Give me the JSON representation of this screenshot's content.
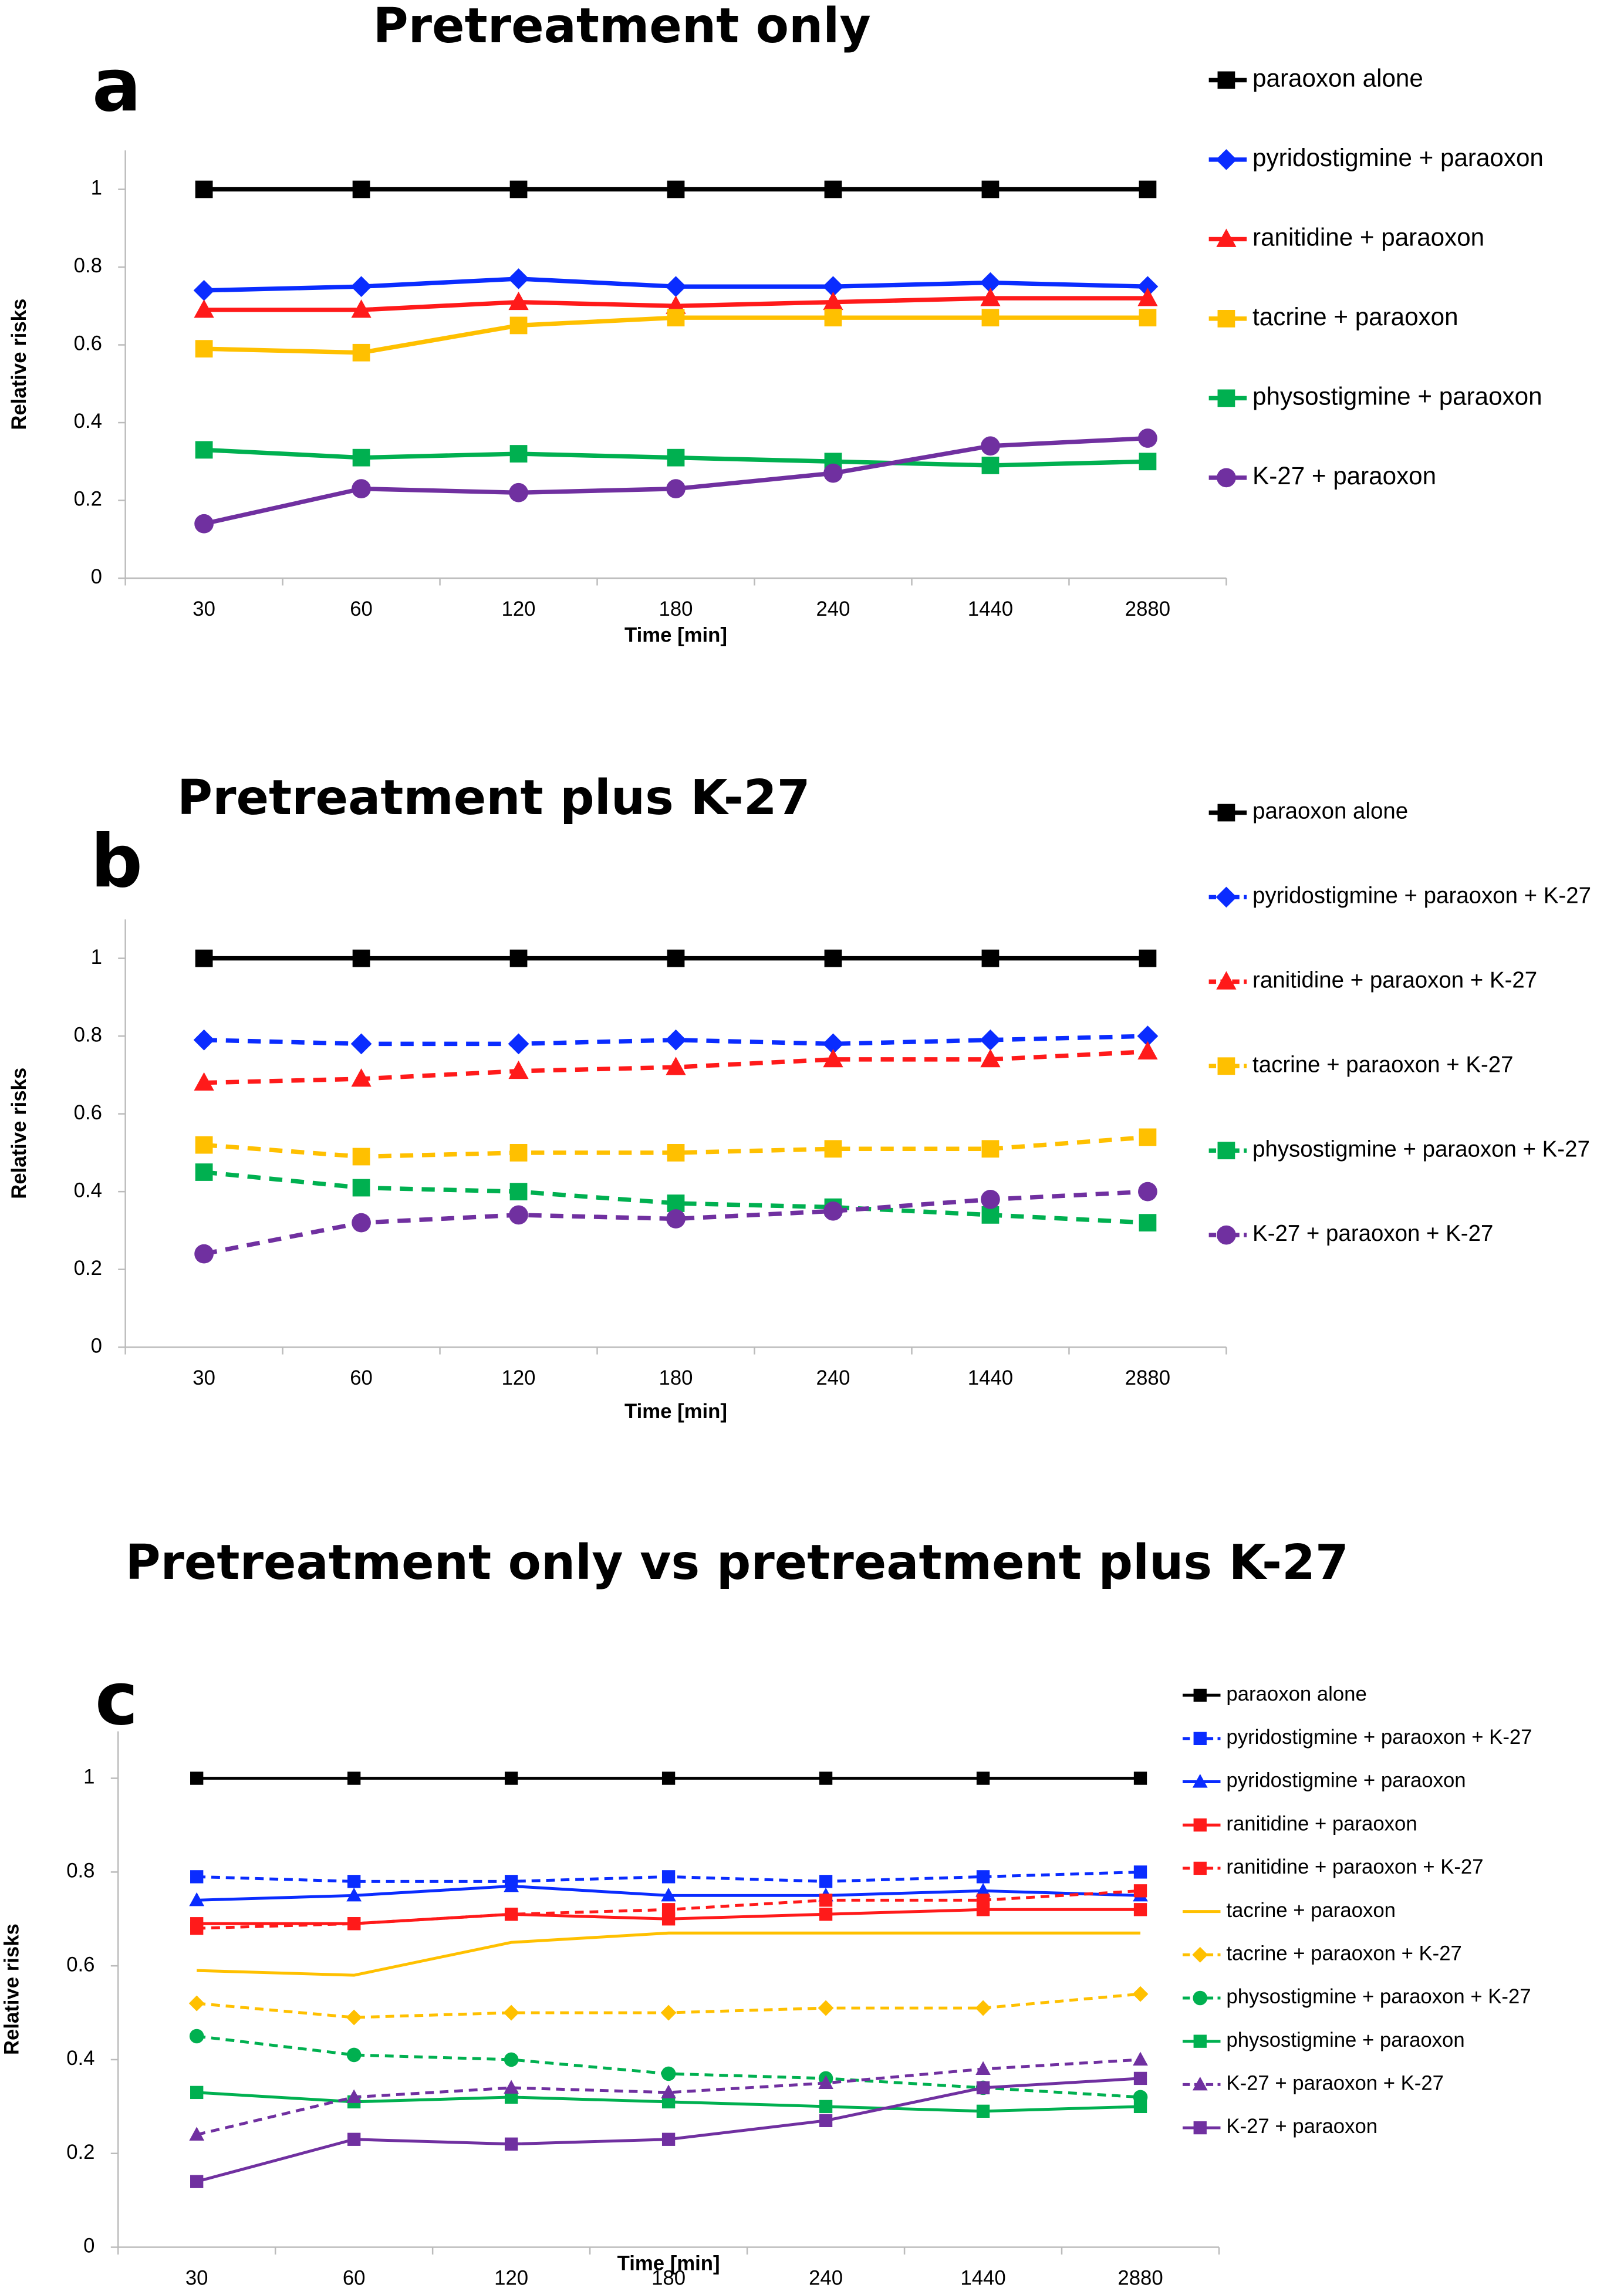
{
  "chart_data": [
    {
      "type": "line",
      "label": "a",
      "title": "Pretreatment only",
      "xlabel": "Time [min]",
      "ylabel": "Relative risks",
      "categories": [
        "30",
        "60",
        "120",
        "180",
        "240",
        "1440",
        "2880"
      ],
      "ylim": [
        0,
        1.1
      ],
      "yticks": [
        0,
        0.2,
        0.4,
        0.6,
        0.8,
        1
      ],
      "series": [
        {
          "name": "paraoxon alone",
          "color": "#000000",
          "dashed": false,
          "marker": "square",
          "values": [
            1,
            1,
            1,
            1,
            1,
            1,
            1
          ]
        },
        {
          "name": "pyridostigmine + paraoxon",
          "color": "#0a2cff",
          "dashed": false,
          "marker": "diamond",
          "values": [
            0.74,
            0.75,
            0.77,
            0.75,
            0.75,
            0.76,
            0.75
          ]
        },
        {
          "name": "ranitidine + paraoxon",
          "color": "#ff1a1a",
          "dashed": false,
          "marker": "triangle",
          "values": [
            0.69,
            0.69,
            0.71,
            0.7,
            0.71,
            0.72,
            0.72
          ]
        },
        {
          "name": "tacrine + paraoxon",
          "color": "#ffc000",
          "dashed": false,
          "marker": "square",
          "values": [
            0.59,
            0.58,
            0.65,
            0.67,
            0.67,
            0.67,
            0.67
          ]
        },
        {
          "name": "physostigmine + paraoxon",
          "color": "#00b050",
          "dashed": false,
          "marker": "square",
          "values": [
            0.33,
            0.31,
            0.32,
            0.31,
            0.3,
            0.29,
            0.3
          ]
        },
        {
          "name": "K-27 + paraoxon",
          "color": "#7030a0",
          "dashed": false,
          "marker": "circle",
          "values": [
            0.14,
            0.23,
            0.22,
            0.23,
            0.27,
            0.34,
            0.36
          ]
        }
      ]
    },
    {
      "type": "line",
      "label": "b",
      "title": "Pretreatment plus K-27",
      "xlabel": "Time [min]",
      "ylabel": "Relative risks",
      "categories": [
        "30",
        "60",
        "120",
        "180",
        "240",
        "1440",
        "2880"
      ],
      "ylim": [
        0,
        1.1
      ],
      "yticks": [
        0,
        0.2,
        0.4,
        0.6,
        0.8,
        1
      ],
      "series": [
        {
          "name": "paraoxon alone",
          "color": "#000000",
          "dashed": false,
          "marker": "square",
          "values": [
            1,
            1,
            1,
            1,
            1,
            1,
            1
          ]
        },
        {
          "name": "pyridostigmine + paraoxon + K-27",
          "color": "#0a2cff",
          "dashed": true,
          "marker": "diamond",
          "values": [
            0.79,
            0.78,
            0.78,
            0.79,
            0.78,
            0.79,
            0.8
          ]
        },
        {
          "name": "ranitidine + paraoxon + K-27",
          "color": "#ff1a1a",
          "dashed": true,
          "marker": "triangle",
          "values": [
            0.68,
            0.69,
            0.71,
            0.72,
            0.74,
            0.74,
            0.76
          ]
        },
        {
          "name": "tacrine + paraoxon + K-27",
          "color": "#ffc000",
          "dashed": true,
          "marker": "square",
          "values": [
            0.52,
            0.49,
            0.5,
            0.5,
            0.51,
            0.51,
            0.54
          ]
        },
        {
          "name": "physostigmine + paraoxon + K-27",
          "color": "#00b050",
          "dashed": true,
          "marker": "square",
          "values": [
            0.45,
            0.41,
            0.4,
            0.37,
            0.36,
            0.34,
            0.32
          ]
        },
        {
          "name": "K-27 + paraoxon + K-27",
          "color": "#7030a0",
          "dashed": true,
          "marker": "circle",
          "values": [
            0.24,
            0.32,
            0.34,
            0.33,
            0.35,
            0.38,
            0.4
          ]
        }
      ]
    },
    {
      "type": "line",
      "label": "c",
      "title": "Pretreatment only vs pretreatment plus K-27",
      "xlabel": "Time [min]",
      "ylabel": "Relative risks",
      "categories": [
        "30",
        "60",
        "120",
        "180",
        "240",
        "1440",
        "2880"
      ],
      "ylim": [
        0,
        1.1
      ],
      "yticks": [
        0,
        0.2,
        0.4,
        0.6,
        0.8,
        1
      ],
      "series": [
        {
          "name": "paraoxon alone",
          "color": "#000000",
          "dashed": false,
          "marker": "square",
          "values": [
            1,
            1,
            1,
            1,
            1,
            1,
            1
          ]
        },
        {
          "name": "pyridostigmine + paraoxon + K-27",
          "color": "#0a2cff",
          "dashed": true,
          "marker": "square",
          "values": [
            0.79,
            0.78,
            0.78,
            0.79,
            0.78,
            0.79,
            0.8
          ]
        },
        {
          "name": "pyridostigmine + paraoxon",
          "color": "#0a2cff",
          "dashed": false,
          "marker": "triangle",
          "values": [
            0.74,
            0.75,
            0.77,
            0.75,
            0.75,
            0.76,
            0.75
          ]
        },
        {
          "name": "ranitidine + paraoxon",
          "color": "#ff1a1a",
          "dashed": false,
          "marker": "square",
          "values": [
            0.69,
            0.69,
            0.71,
            0.7,
            0.71,
            0.72,
            0.72
          ]
        },
        {
          "name": "ranitidine + paraoxon + K-27",
          "color": "#ff1a1a",
          "dashed": true,
          "marker": "square",
          "values": [
            0.68,
            0.69,
            0.71,
            0.72,
            0.74,
            0.74,
            0.76
          ]
        },
        {
          "name": "tacrine + paraoxon",
          "color": "#ffc000",
          "dashed": false,
          "marker": "none",
          "values": [
            0.59,
            0.58,
            0.65,
            0.67,
            0.67,
            0.67,
            0.67
          ]
        },
        {
          "name": "tacrine + paraoxon + K-27",
          "color": "#ffc000",
          "dashed": true,
          "marker": "diamond",
          "values": [
            0.52,
            0.49,
            0.5,
            0.5,
            0.51,
            0.51,
            0.54
          ]
        },
        {
          "name": "physostigmine + paraoxon + K-27",
          "color": "#00b050",
          "dashed": true,
          "marker": "circle",
          "values": [
            0.45,
            0.41,
            0.4,
            0.37,
            0.36,
            0.34,
            0.32
          ]
        },
        {
          "name": "physostigmine + paraoxon",
          "color": "#00b050",
          "dashed": false,
          "marker": "square",
          "values": [
            0.33,
            0.31,
            0.32,
            0.31,
            0.3,
            0.29,
            0.3
          ]
        },
        {
          "name": "K-27 + paraoxon + K-27",
          "color": "#7030a0",
          "dashed": true,
          "marker": "triangle",
          "values": [
            0.24,
            0.32,
            0.34,
            0.33,
            0.35,
            0.38,
            0.4
          ]
        },
        {
          "name": "K-27 + paraoxon",
          "color": "#7030a0",
          "dashed": false,
          "marker": "square",
          "values": [
            0.14,
            0.23,
            0.22,
            0.23,
            0.27,
            0.34,
            0.36
          ]
        }
      ]
    }
  ]
}
